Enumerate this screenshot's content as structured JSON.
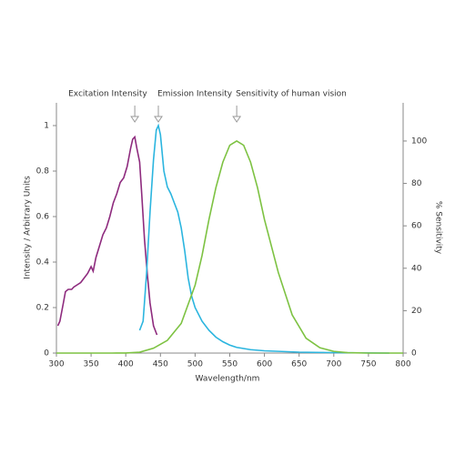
{
  "chart_data": {
    "type": "line",
    "xlabel": "Wavelength/nm",
    "ylabel": "Intensity / Arbitrary Units",
    "y2label": "% Sensitivity",
    "xlim": [
      300,
      800
    ],
    "xticks": [
      300,
      350,
      400,
      450,
      500,
      550,
      600,
      650,
      700,
      750,
      800
    ],
    "ylim": [
      0,
      1.1
    ],
    "yticks": [
      0,
      0.2,
      0.4,
      0.6,
      0.8,
      1
    ],
    "y2lim": [
      0,
      118
    ],
    "y2ticks": [
      0,
      20,
      40,
      60,
      80,
      100
    ],
    "series": [
      {
        "name": "Excitation Intensity",
        "color": "#8e2b7e",
        "x": [
          302,
          305,
          310,
          313,
          317,
          322,
          325,
          330,
          335,
          340,
          345,
          350,
          353,
          357,
          362,
          367,
          372,
          377,
          382,
          387,
          392,
          397,
          402,
          407,
          410,
          413,
          416,
          420,
          423,
          427,
          431,
          435,
          440,
          445
        ],
        "values": [
          0.12,
          0.14,
          0.22,
          0.27,
          0.28,
          0.28,
          0.29,
          0.3,
          0.31,
          0.33,
          0.35,
          0.38,
          0.36,
          0.42,
          0.47,
          0.52,
          0.55,
          0.6,
          0.66,
          0.7,
          0.75,
          0.77,
          0.82,
          0.9,
          0.94,
          0.95,
          0.9,
          0.84,
          0.7,
          0.5,
          0.35,
          0.22,
          0.12,
          0.08
        ]
      },
      {
        "name": "Emission Intensity",
        "color": "#2bb5df",
        "x": [
          420,
          425,
          430,
          435,
          440,
          444,
          447,
          450,
          455,
          460,
          465,
          470,
          475,
          480,
          485,
          490,
          495,
          500,
          510,
          520,
          530,
          540,
          550,
          560,
          580,
          600,
          650,
          700,
          780
        ],
        "values": [
          0.1,
          0.14,
          0.35,
          0.62,
          0.85,
          0.98,
          1,
          0.96,
          0.8,
          0.73,
          0.7,
          0.66,
          0.62,
          0.55,
          0.45,
          0.33,
          0.25,
          0.2,
          0.14,
          0.1,
          0.07,
          0.05,
          0.035,
          0.025,
          0.015,
          0.01,
          0.004,
          0.002,
          0
        ]
      },
      {
        "name": "Sensitivity of human vision",
        "color": "#7dc242",
        "axis": "y2",
        "x": [
          300,
          380,
          400,
          420,
          440,
          460,
          480,
          500,
          510,
          520,
          530,
          540,
          550,
          560,
          570,
          580,
          590,
          600,
          620,
          640,
          660,
          680,
          700,
          720,
          750,
          800
        ],
        "values": [
          0,
          0,
          0.04,
          0.4,
          2.3,
          6,
          14,
          32,
          46,
          63,
          78,
          90,
          98,
          100,
          98,
          90,
          78,
          63,
          38,
          18,
          7,
          2.5,
          0.8,
          0.2,
          0,
          0
        ]
      }
    ]
  }
}
